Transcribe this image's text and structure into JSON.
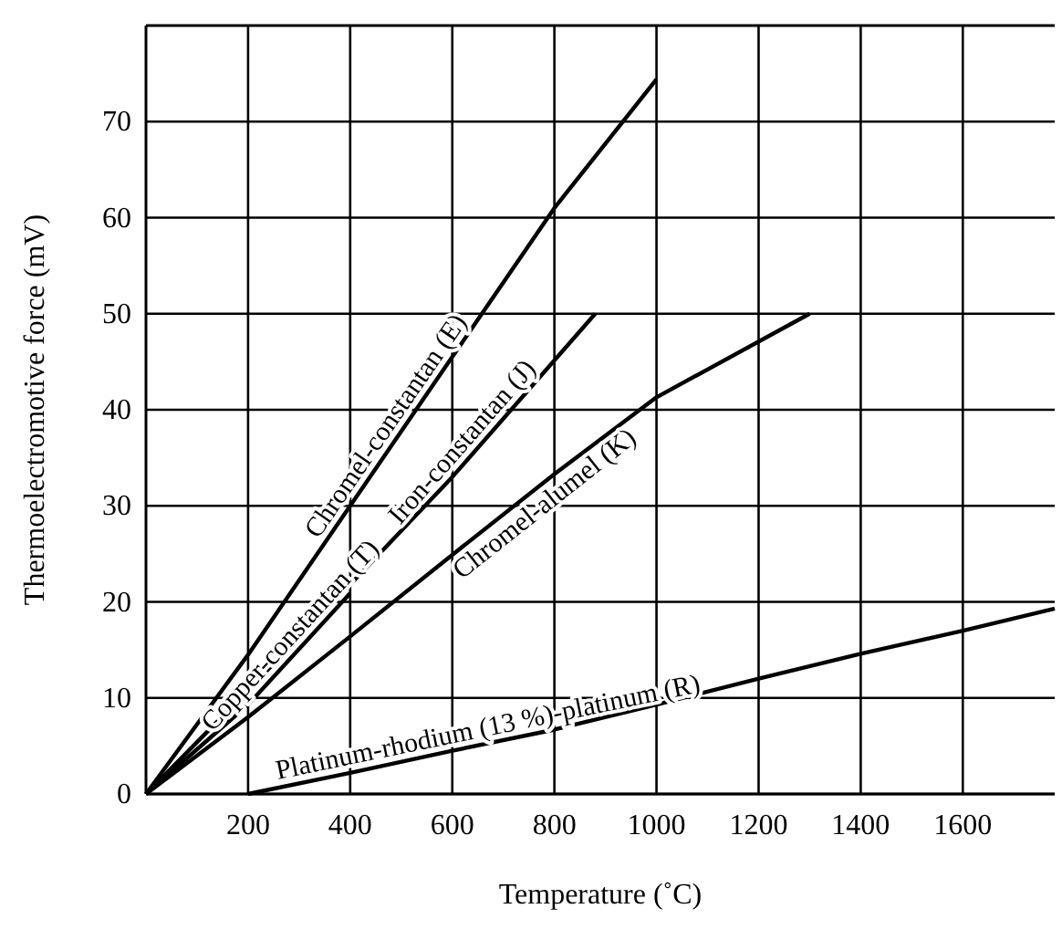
{
  "chart_data": {
    "type": "line",
    "xlabel": "Temperature (˚C)",
    "ylabel": "Thermoelectromotive force (mV)",
    "xlim": [
      0,
      1780
    ],
    "ylim": [
      0,
      80
    ],
    "xticks": [
      200,
      400,
      600,
      800,
      1000,
      1200,
      1400,
      1600
    ],
    "yticks": [
      0,
      10,
      20,
      30,
      40,
      50,
      60,
      70
    ],
    "grid": true,
    "marker": "none",
    "line_style": "solid",
    "series": [
      {
        "name": "Chromel-constantan (E)",
        "color": "#000000",
        "x": [
          0,
          200,
          400,
          600,
          800,
          1000
        ],
        "values": [
          0,
          14.5,
          30,
          45.5,
          61,
          74.4
        ]
      },
      {
        "name": "Iron-constantan (J)",
        "color": "#000000",
        "x": [
          0,
          200,
          400,
          600,
          880
        ],
        "values": [
          0,
          10.8,
          21.8,
          33,
          50
        ]
      },
      {
        "name": "Copper-constantan (T)",
        "color": "#000000",
        "x": [
          0,
          200,
          400
        ],
        "values": [
          0,
          9.3,
          20.9
        ]
      },
      {
        "name": "Chromel-alumel (K)",
        "color": "#000000",
        "x": [
          0,
          200,
          400,
          600,
          800,
          1000,
          1300
        ],
        "values": [
          0,
          8,
          16.4,
          24.9,
          33.3,
          41.3,
          50
        ]
      },
      {
        "name": "Platinum-rhodium (13 %)-platinum (R)",
        "color": "#000000",
        "x": [
          200,
          400,
          600,
          800,
          1000,
          1200,
          1400,
          1600,
          1780
        ],
        "values": [
          0,
          2.2,
          4.5,
          6.7,
          9.3,
          12,
          14.6,
          17,
          19.3
        ]
      }
    ]
  }
}
